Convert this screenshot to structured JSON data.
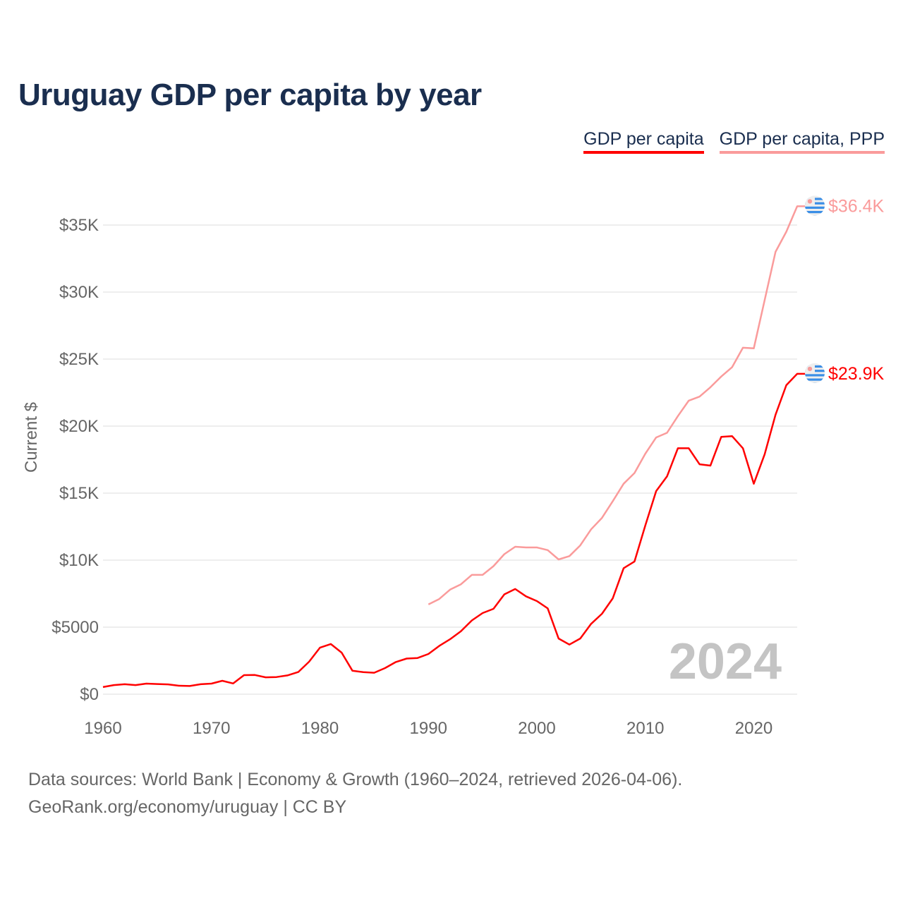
{
  "title": "Uruguay GDP per capita by year",
  "legend": [
    "GDP per capita",
    "GDP per capita, PPP"
  ],
  "footer": {
    "line1": "Data sources: World Bank | Economy & Growth (1960–2024, retrieved 2026-04-06).",
    "line2": "GeoRank.org/economy/uruguay | CC BY"
  },
  "year_watermark": "2024",
  "chart_data": {
    "type": "line",
    "title": "Uruguay GDP per capita by year",
    "xlabel": "",
    "ylabel": "Current $",
    "xlim": [
      1960,
      2024
    ],
    "ylim": [
      0,
      37000
    ],
    "grid": true,
    "legend_position": "top-right",
    "x_ticks": [
      1960,
      1970,
      1980,
      1990,
      2000,
      2010,
      2020
    ],
    "x_tick_labels": [
      "1960",
      "1970",
      "1980",
      "1990",
      "2000",
      "2010",
      "2020"
    ],
    "y_ticks": [
      0,
      5000,
      10000,
      15000,
      20000,
      25000,
      30000,
      35000
    ],
    "y_tick_labels": [
      "$0",
      "$5000",
      "$10K",
      "$15K",
      "$20K",
      "$25K",
      "$30K",
      "$35K"
    ],
    "series": [
      {
        "name": "GDP per capita",
        "color": "#ff0000",
        "end_label": "$23.9K",
        "x_start": 1960,
        "values": [
          530,
          680,
          740,
          680,
          790,
          760,
          730,
          630,
          610,
          740,
          790,
          1000,
          800,
          1420,
          1430,
          1260,
          1280,
          1400,
          1650,
          2420,
          3470,
          3740,
          3100,
          1750,
          1640,
          1600,
          1950,
          2400,
          2660,
          2700,
          3000,
          3600,
          4100,
          4700,
          5500,
          6050,
          6370,
          7450,
          7850,
          7300,
          6950,
          6400,
          4150,
          3700,
          4150,
          5250,
          6000,
          7150,
          9400,
          9900,
          12600,
          15150,
          16250,
          18350,
          18350,
          17150,
          17050,
          19200,
          19250,
          18350,
          15700,
          17900,
          20850,
          23050,
          23900
        ]
      },
      {
        "name": "GDP per capita, PPP",
        "color": "#fa9b9b",
        "end_label": "$36.4K",
        "x_start": 1990,
        "values": [
          6700,
          7100,
          7800,
          8200,
          8900,
          8900,
          9550,
          10450,
          11000,
          10950,
          10950,
          10750,
          10050,
          10300,
          11100,
          12300,
          13150,
          14400,
          15700,
          16500,
          17950,
          19150,
          19500,
          20750,
          21900,
          22200,
          22900,
          23700,
          24400,
          25850,
          25800,
          29400,
          33000,
          34500,
          36400
        ]
      }
    ]
  }
}
